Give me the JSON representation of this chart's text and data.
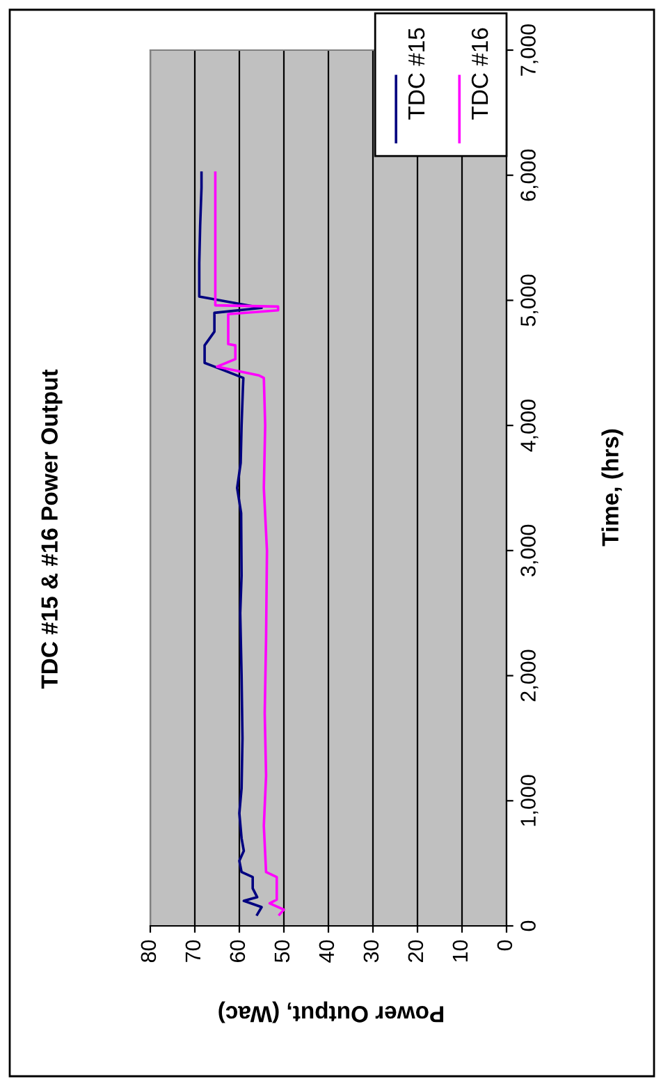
{
  "chart_data": {
    "type": "line",
    "title": "TDC #15 & #16 Power Output",
    "xlabel": "Power Output, (Wac)",
    "ylabel": "Time, (hrs)",
    "ylim": [
      0,
      7000
    ],
    "yticks": [
      0,
      {
        "value": 1000,
        "label": "1,000"
      },
      {
        "value": 2000,
        "label": "2,000"
      },
      {
        "value": 3000,
        "label": "3,000"
      },
      {
        "value": 4000,
        "label": "4,000"
      },
      {
        "value": 5000,
        "label": "5,000"
      },
      {
        "value": 6000,
        "label": "6,000"
      },
      {
        "value": 7000,
        "label": "7,000"
      }
    ],
    "xlim": [
      80,
      0
    ],
    "xticks": [
      0,
      10,
      20,
      30,
      40,
      50,
      60,
      70,
      80
    ],
    "grid": "x",
    "legend": "top right",
    "marker": "none",
    "line_style": "solid",
    "series": [
      {
        "name": "TDC #15",
        "color": "#000080",
        "values": [
          90,
          150,
          200,
          230,
          300,
          390,
          430,
          520,
          600,
          700,
          900,
          1100,
          1500,
          2000,
          2500,
          2800,
          3300,
          3500,
          3700,
          4000,
          4300,
          4380,
          4470,
          4500,
          4640,
          4700,
          4750,
          4900,
          4940,
          5030,
          5300,
          5600,
          5900,
          6020
        ],
        "x": [
          56,
          55,
          59,
          56,
          57,
          57,
          59.5,
          60,
          59,
          59.5,
          60,
          59.5,
          59.3,
          59.5,
          59.8,
          59.5,
          59.6,
          60.5,
          59.7,
          59.5,
          59.2,
          59.1,
          65.6,
          67.8,
          67.8,
          66.6,
          65.6,
          65.6,
          55,
          69,
          69,
          68.8,
          68.5,
          68.5
        ]
      },
      {
        "name": "TDC #16",
        "color": "#ff00ff",
        "values": [
          90,
          130,
          180,
          210,
          390,
          430,
          800,
          1200,
          1700,
          2300,
          3000,
          3500,
          4000,
          4380,
          4400,
          4470,
          4530,
          4640,
          4650,
          4890,
          4920,
          4950,
          4960,
          5500,
          6020
        ],
        "x": [
          51,
          50,
          53.2,
          51.6,
          51.6,
          54,
          54.5,
          54,
          54.3,
          54,
          53.8,
          54.5,
          54.2,
          54.5,
          55.6,
          65,
          60.9,
          60.9,
          62.5,
          62.5,
          51.3,
          51.3,
          65.4,
          65.4,
          65.4
        ]
      }
    ]
  }
}
